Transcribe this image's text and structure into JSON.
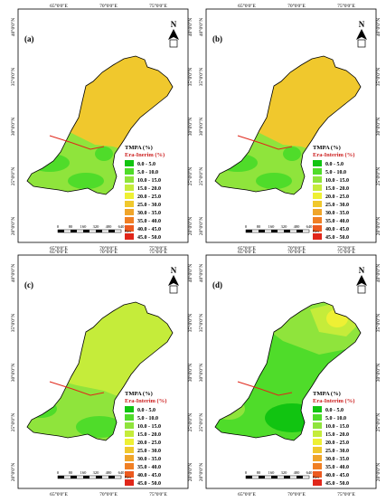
{
  "panels": [
    {
      "label": "(a)",
      "variant": "a"
    },
    {
      "label": "(b)",
      "variant": "b"
    },
    {
      "label": "(c)",
      "variant": "c"
    },
    {
      "label": "(d)",
      "variant": "d"
    }
  ],
  "axes": {
    "x_ticks": [
      "65°0'0\"E",
      "70°0'0\"E",
      "75°0'0\"E"
    ],
    "y_ticks": [
      "40°0'0\"N",
      "35°0'0\"N",
      "30°0'0\"N",
      "25°0'0\"N",
      "20°0'0\"N"
    ]
  },
  "legend": {
    "title_1": "TMPA (%)",
    "title_2": "Era-Inerim (%)",
    "title_2_alt": "Era-Interim (%)",
    "classes": [
      {
        "label": "0.0 - 5.0",
        "color": "#11c411"
      },
      {
        "label": "5.0 - 10.0",
        "color": "#4fdc2a"
      },
      {
        "label": "10.0 - 15.0",
        "color": "#8fe43c"
      },
      {
        "label": "15.0 - 20.0",
        "color": "#c5ec3a"
      },
      {
        "label": "20.0 - 25.0",
        "color": "#eef034"
      },
      {
        "label": "25.0 - 30.0",
        "color": "#f0c82d"
      },
      {
        "label": "30.0 - 35.0",
        "color": "#f0a52a"
      },
      {
        "label": "35.0 - 40.0",
        "color": "#f07f24"
      },
      {
        "label": "40.0 - 45.0",
        "color": "#ec5a1f"
      },
      {
        "label": "45.0 - 50.0",
        "color": "#e0261a"
      }
    ]
  },
  "scale_bar": {
    "ticks": [
      "0",
      "80",
      "160",
      "320",
      "480",
      "640"
    ],
    "unit": "Km"
  },
  "north_arrow": "N"
}
